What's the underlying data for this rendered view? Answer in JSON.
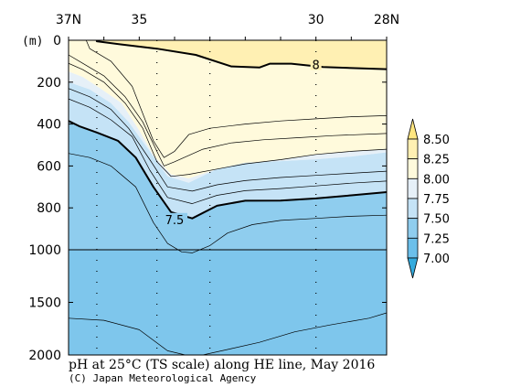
{
  "chart_data": {
    "type": "contour_section",
    "title": "pH at 25°C (TS scale) along HE line, May 2016",
    "credit": "(C) Japan Meteorological Agency",
    "x": {
      "direction": "north_to_south",
      "range": [
        37,
        28
      ],
      "tick_labels": [
        {
          "value": 37,
          "label": "37N"
        },
        {
          "value": 35,
          "label": "35"
        },
        {
          "value": 30,
          "label": "30"
        },
        {
          "value": 28,
          "label": "28N"
        }
      ]
    },
    "y": {
      "unit_label": "(m)",
      "range": [
        0,
        2000
      ],
      "scale_break": 1000,
      "tick_labels": [
        "0",
        "200",
        "400",
        "600",
        "800",
        "1000",
        "1500",
        "2000"
      ]
    },
    "colorbar": {
      "levels": [
        "8.50",
        "8.25",
        "8.00",
        "7.75",
        "7.50",
        "7.25",
        "7.00"
      ],
      "colors": [
        "#ffe680",
        "#fff0b3",
        "#fffadc",
        "#e6f0f8",
        "#c5e3f6",
        "#8fcdee",
        "#6bbfea",
        "#33aadd"
      ]
    },
    "contour_labels": [
      "8",
      "7.5"
    ],
    "stations_lat": [
      36.2,
      34.5,
      33.0,
      30.0
    ],
    "fills": [
      {
        "color": "#fff0b3",
        "pts": [
          [
            37,
            0
          ],
          [
            36.2,
            0
          ],
          [
            36.2,
            5
          ],
          [
            35.5,
            20
          ],
          [
            34.5,
            40
          ],
          [
            33.4,
            70
          ],
          [
            32.4,
            125
          ],
          [
            31.6,
            130
          ],
          [
            31.3,
            112
          ],
          [
            30.7,
            112
          ],
          [
            29.8,
            128
          ],
          [
            28,
            138
          ],
          [
            28,
            0
          ]
        ]
      },
      {
        "color": "#fffadc",
        "pts": [
          [
            37,
            0
          ],
          [
            36.2,
            0
          ],
          [
            36.2,
            5
          ],
          [
            35.5,
            20
          ],
          [
            34.5,
            40
          ],
          [
            33.4,
            70
          ],
          [
            32.4,
            125
          ],
          [
            31.6,
            130
          ],
          [
            31.3,
            112
          ],
          [
            30.7,
            112
          ],
          [
            29.8,
            128
          ],
          [
            28,
            138
          ],
          [
            28,
            520
          ],
          [
            29,
            530
          ],
          [
            30,
            545
          ],
          [
            31,
            570
          ],
          [
            32,
            590
          ],
          [
            32.8,
            615
          ],
          [
            33.6,
            660
          ],
          [
            34.1,
            640
          ],
          [
            34.6,
            550
          ],
          [
            35,
            430
          ],
          [
            35.5,
            300
          ],
          [
            36.1,
            230
          ],
          [
            36.6,
            175
          ],
          [
            37,
            150
          ]
        ]
      },
      {
        "color": "#e6f0f8",
        "pts": [
          [
            37,
            150
          ],
          [
            36.6,
            175
          ],
          [
            36.1,
            230
          ],
          [
            35.5,
            300
          ],
          [
            35,
            430
          ],
          [
            34.6,
            550
          ],
          [
            34.1,
            640
          ],
          [
            33.6,
            660
          ],
          [
            32.8,
            615
          ],
          [
            32,
            590
          ],
          [
            31,
            570
          ],
          [
            30,
            545
          ],
          [
            29,
            530
          ],
          [
            28,
            520
          ],
          [
            28,
            535
          ],
          [
            29,
            555
          ],
          [
            30,
            568
          ],
          [
            31,
            577
          ],
          [
            32,
            585
          ],
          [
            32.8,
            615
          ],
          [
            33.6,
            680
          ],
          [
            34.2,
            650
          ],
          [
            34.7,
            530
          ],
          [
            35.3,
            390
          ],
          [
            35.8,
            300
          ],
          [
            36.4,
            235
          ],
          [
            37,
            200
          ]
        ]
      },
      {
        "color": "#c5e3f6",
        "pts": [
          [
            37,
            200
          ],
          [
            36.4,
            235
          ],
          [
            35.8,
            300
          ],
          [
            35.3,
            390
          ],
          [
            34.7,
            530
          ],
          [
            34.2,
            650
          ],
          [
            33.6,
            680
          ],
          [
            32.8,
            615
          ],
          [
            32,
            585
          ],
          [
            31,
            577
          ],
          [
            30,
            568
          ],
          [
            29,
            555
          ],
          [
            28,
            535
          ],
          [
            28,
            725
          ],
          [
            29,
            740
          ],
          [
            30,
            755
          ],
          [
            31,
            765
          ],
          [
            32,
            766
          ],
          [
            32.8,
            790
          ],
          [
            33.5,
            850
          ],
          [
            34.1,
            820
          ],
          [
            34.6,
            700
          ],
          [
            35.1,
            560
          ],
          [
            35.6,
            480
          ],
          [
            36.2,
            440
          ],
          [
            36.7,
            410
          ],
          [
            37,
            385
          ]
        ]
      },
      {
        "color": "#8fcdee",
        "pts": [
          [
            37,
            385
          ],
          [
            36.7,
            410
          ],
          [
            36.2,
            440
          ],
          [
            35.6,
            480
          ],
          [
            35.1,
            560
          ],
          [
            34.6,
            700
          ],
          [
            34.1,
            820
          ],
          [
            33.5,
            850
          ],
          [
            32.8,
            790
          ],
          [
            32,
            766
          ],
          [
            31,
            765
          ],
          [
            30,
            755
          ],
          [
            29,
            740
          ],
          [
            28,
            725
          ],
          [
            28,
            1000
          ],
          [
            37,
            1000
          ]
        ]
      },
      {
        "color": "#7ec6ec",
        "pts": [
          [
            37,
            1000
          ],
          [
            28,
            1000
          ],
          [
            28,
            2000
          ],
          [
            37,
            2000
          ]
        ]
      }
    ],
    "contours": [
      {
        "level": "8.00",
        "bold": true,
        "pts": [
          [
            36.2,
            0
          ],
          [
            36.2,
            5
          ],
          [
            35.5,
            20
          ],
          [
            34.5,
            40
          ],
          [
            33.4,
            70
          ],
          [
            32.4,
            125
          ],
          [
            31.6,
            130
          ],
          [
            31.3,
            112
          ],
          [
            30.7,
            112
          ],
          [
            29.8,
            128
          ],
          [
            28,
            138
          ]
        ]
      },
      {
        "level": "7.90",
        "pts": [
          [
            36.5,
            0
          ],
          [
            36.4,
            40
          ],
          [
            35.8,
            100
          ],
          [
            35.2,
            220
          ],
          [
            34.6,
            480
          ],
          [
            34.3,
            560
          ],
          [
            34.0,
            530
          ],
          [
            33.6,
            450
          ],
          [
            33.0,
            420
          ],
          [
            32,
            400
          ],
          [
            31,
            385
          ],
          [
            30,
            375
          ],
          [
            29,
            365
          ],
          [
            28,
            360
          ]
        ]
      },
      {
        "level": "7.85",
        "pts": [
          [
            37,
            70
          ],
          [
            36.6,
            110
          ],
          [
            36.0,
            170
          ],
          [
            35.4,
            270
          ],
          [
            34.9,
            390
          ],
          [
            34.3,
            600
          ],
          [
            34.0,
            580
          ],
          [
            33.2,
            520
          ],
          [
            32.4,
            490
          ],
          [
            31.5,
            475
          ],
          [
            30.5,
            465
          ],
          [
            29.5,
            455
          ],
          [
            28,
            445
          ]
        ]
      },
      {
        "level": "7.80",
        "pts": [
          [
            37,
            110
          ],
          [
            36.6,
            140
          ],
          [
            36.0,
            200
          ],
          [
            35.4,
            300
          ],
          [
            34.9,
            420
          ],
          [
            34.5,
            580
          ],
          [
            34.1,
            650
          ],
          [
            33.6,
            640
          ],
          [
            32.8,
            615
          ],
          [
            32,
            590
          ],
          [
            31,
            570
          ],
          [
            30,
            545
          ],
          [
            29,
            530
          ],
          [
            28,
            520
          ]
        ]
      },
      {
        "level": "7.70",
        "pts": [
          [
            37,
            230
          ],
          [
            36.4,
            270
          ],
          [
            35.8,
            330
          ],
          [
            35.3,
            420
          ],
          [
            34.7,
            570
          ],
          [
            34.2,
            700
          ],
          [
            33.5,
            720
          ],
          [
            32.8,
            690
          ],
          [
            32,
            670
          ],
          [
            31,
            655
          ],
          [
            30,
            645
          ],
          [
            29,
            635
          ],
          [
            28,
            625
          ]
        ]
      },
      {
        "level": "7.60",
        "pts": [
          [
            37,
            280
          ],
          [
            36.4,
            320
          ],
          [
            35.8,
            380
          ],
          [
            35.2,
            460
          ],
          [
            34.7,
            620
          ],
          [
            34.2,
            750
          ],
          [
            33.5,
            780
          ],
          [
            32.8,
            740
          ],
          [
            32,
            718
          ],
          [
            31,
            708
          ],
          [
            30,
            695
          ],
          [
            29,
            682
          ],
          [
            28,
            672
          ]
        ]
      },
      {
        "level": "7.50",
        "bold": true,
        "pts": [
          [
            37,
            385
          ],
          [
            36.7,
            410
          ],
          [
            36.2,
            440
          ],
          [
            35.6,
            480
          ],
          [
            35.1,
            560
          ],
          [
            34.6,
            700
          ],
          [
            34.1,
            820
          ],
          [
            33.5,
            850
          ],
          [
            32.8,
            790
          ],
          [
            32,
            766
          ],
          [
            31,
            765
          ],
          [
            30,
            755
          ],
          [
            29,
            740
          ],
          [
            28,
            725
          ]
        ]
      },
      {
        "level": "7.40",
        "pts": [
          [
            37,
            540
          ],
          [
            36.4,
            560
          ],
          [
            35.8,
            600
          ],
          [
            35.1,
            700
          ],
          [
            34.6,
            870
          ],
          [
            34.2,
            970
          ],
          [
            33.8,
            1020
          ],
          [
            33.5,
            1030
          ],
          [
            33.0,
            980
          ],
          [
            32.5,
            920
          ],
          [
            31.8,
            880
          ],
          [
            31,
            860
          ],
          [
            30,
            850
          ],
          [
            29,
            840
          ],
          [
            28,
            835
          ]
        ]
      },
      {
        "level": "7.35",
        "pts": [
          [
            37,
            1650
          ],
          [
            36.0,
            1670
          ],
          [
            35.0,
            1760
          ],
          [
            34.2,
            1960
          ],
          [
            33.7,
            2000
          ]
        ]
      },
      {
        "level": "7.35",
        "pts": [
          [
            33.2,
            2000
          ],
          [
            32.4,
            1940
          ],
          [
            31.6,
            1880
          ],
          [
            30.6,
            1780
          ],
          [
            29.6,
            1715
          ],
          [
            28.5,
            1650
          ],
          [
            28,
            1600
          ]
        ]
      }
    ]
  }
}
